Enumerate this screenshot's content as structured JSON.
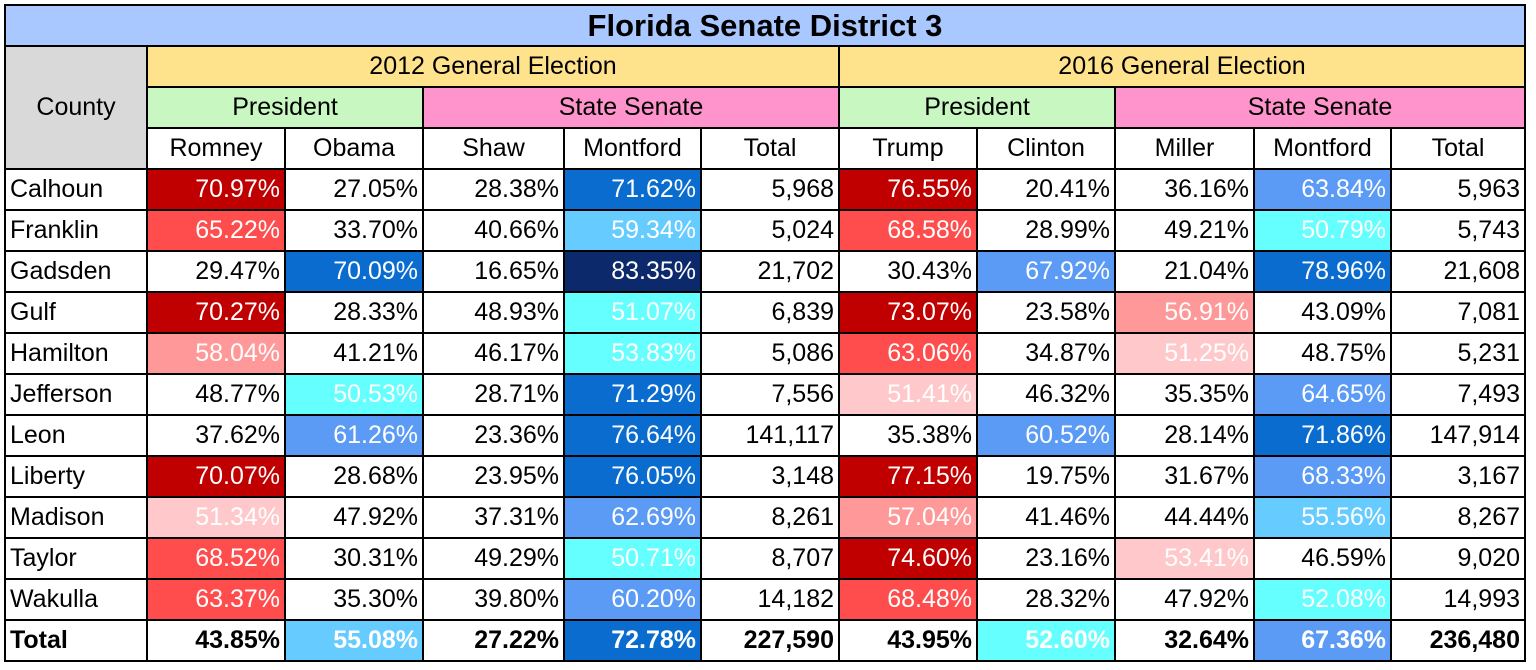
{
  "title": "Florida Senate District 3",
  "county_header": "County",
  "colors": {
    "title_bg": "#a9c8ff",
    "election_bg": "#ffe38c",
    "president_bg": "#c8f7c2",
    "senate_bg": "#ff93cb",
    "county_bg": "#d9d9d9",
    "r_very_strong": "#c00000",
    "r_strong": "#ff4d4d",
    "r_lean": "#ff9999",
    "r_slight": "#ffc9cc",
    "d_slight": "#66ffff",
    "d_lean": "#66ccff",
    "d_medium": "#5b9bf5",
    "d_strong": "#0a6ccf",
    "d_very_strong": "#0c2a6b"
  },
  "elections": [
    {
      "label": "2012 General Election",
      "offices": [
        {
          "label": "President",
          "columns": [
            "Romney",
            "Obama"
          ]
        },
        {
          "label": "State Senate",
          "columns": [
            "Shaw",
            "Montford",
            "Total"
          ]
        }
      ]
    },
    {
      "label": "2016 General Election",
      "offices": [
        {
          "label": "President",
          "columns": [
            "Trump",
            "Clinton"
          ]
        },
        {
          "label": "State Senate",
          "columns": [
            "Miller",
            "Montford",
            "Total"
          ]
        }
      ]
    }
  ],
  "chart_data": {
    "type": "table",
    "title": "Florida Senate District 3",
    "columns": [
      "County",
      "Romney",
      "Obama",
      "Shaw",
      "Montford",
      "Total",
      "Trump",
      "Clinton",
      "Miller",
      "Montford",
      "Total"
    ],
    "rows": [
      {
        "county": "Calhoun",
        "cells": [
          {
            "v": "70.97%",
            "shade": "r_very_strong"
          },
          {
            "v": "27.05%"
          },
          {
            "v": "28.38%"
          },
          {
            "v": "71.62%",
            "shade": "d_strong"
          },
          {
            "v": "5,968"
          },
          {
            "v": "76.55%",
            "shade": "r_very_strong"
          },
          {
            "v": "20.41%"
          },
          {
            "v": "36.16%"
          },
          {
            "v": "63.84%",
            "shade": "d_medium"
          },
          {
            "v": "5,963"
          }
        ]
      },
      {
        "county": "Franklin",
        "cells": [
          {
            "v": "65.22%",
            "shade": "r_strong"
          },
          {
            "v": "33.70%"
          },
          {
            "v": "40.66%"
          },
          {
            "v": "59.34%",
            "shade": "d_lean"
          },
          {
            "v": "5,024"
          },
          {
            "v": "68.58%",
            "shade": "r_strong"
          },
          {
            "v": "28.99%"
          },
          {
            "v": "49.21%"
          },
          {
            "v": "50.79%",
            "shade": "d_slight"
          },
          {
            "v": "5,743"
          }
        ]
      },
      {
        "county": "Gadsden",
        "cells": [
          {
            "v": "29.47%"
          },
          {
            "v": "70.09%",
            "shade": "d_strong"
          },
          {
            "v": "16.65%"
          },
          {
            "v": "83.35%",
            "shade": "d_very_strong"
          },
          {
            "v": "21,702"
          },
          {
            "v": "30.43%"
          },
          {
            "v": "67.92%",
            "shade": "d_medium"
          },
          {
            "v": "21.04%"
          },
          {
            "v": "78.96%",
            "shade": "d_strong"
          },
          {
            "v": "21,608"
          }
        ]
      },
      {
        "county": "Gulf",
        "cells": [
          {
            "v": "70.27%",
            "shade": "r_very_strong"
          },
          {
            "v": "28.33%"
          },
          {
            "v": "48.93%"
          },
          {
            "v": "51.07%",
            "shade": "d_slight"
          },
          {
            "v": "6,839"
          },
          {
            "v": "73.07%",
            "shade": "r_very_strong"
          },
          {
            "v": "23.58%"
          },
          {
            "v": "56.91%",
            "shade": "r_lean"
          },
          {
            "v": "43.09%"
          },
          {
            "v": "7,081"
          }
        ]
      },
      {
        "county": "Hamilton",
        "cells": [
          {
            "v": "58.04%",
            "shade": "r_lean"
          },
          {
            "v": "41.21%"
          },
          {
            "v": "46.17%"
          },
          {
            "v": "53.83%",
            "shade": "d_slight"
          },
          {
            "v": "5,086"
          },
          {
            "v": "63.06%",
            "shade": "r_strong"
          },
          {
            "v": "34.87%"
          },
          {
            "v": "51.25%",
            "shade": "r_slight"
          },
          {
            "v": "48.75%"
          },
          {
            "v": "5,231"
          }
        ]
      },
      {
        "county": "Jefferson",
        "cells": [
          {
            "v": "48.77%"
          },
          {
            "v": "50.53%",
            "shade": "d_slight"
          },
          {
            "v": "28.71%"
          },
          {
            "v": "71.29%",
            "shade": "d_strong"
          },
          {
            "v": "7,556"
          },
          {
            "v": "51.41%",
            "shade": "r_slight"
          },
          {
            "v": "46.32%"
          },
          {
            "v": "35.35%"
          },
          {
            "v": "64.65%",
            "shade": "d_medium"
          },
          {
            "v": "7,493"
          }
        ]
      },
      {
        "county": "Leon",
        "cells": [
          {
            "v": "37.62%"
          },
          {
            "v": "61.26%",
            "shade": "d_medium"
          },
          {
            "v": "23.36%"
          },
          {
            "v": "76.64%",
            "shade": "d_strong"
          },
          {
            "v": "141,117"
          },
          {
            "v": "35.38%"
          },
          {
            "v": "60.52%",
            "shade": "d_medium"
          },
          {
            "v": "28.14%"
          },
          {
            "v": "71.86%",
            "shade": "d_strong"
          },
          {
            "v": "147,914"
          }
        ]
      },
      {
        "county": "Liberty",
        "cells": [
          {
            "v": "70.07%",
            "shade": "r_very_strong"
          },
          {
            "v": "28.68%"
          },
          {
            "v": "23.95%"
          },
          {
            "v": "76.05%",
            "shade": "d_strong"
          },
          {
            "v": "3,148"
          },
          {
            "v": "77.15%",
            "shade": "r_very_strong"
          },
          {
            "v": "19.75%"
          },
          {
            "v": "31.67%"
          },
          {
            "v": "68.33%",
            "shade": "d_medium"
          },
          {
            "v": "3,167"
          }
        ]
      },
      {
        "county": "Madison",
        "cells": [
          {
            "v": "51.34%",
            "shade": "r_slight"
          },
          {
            "v": "47.92%"
          },
          {
            "v": "37.31%"
          },
          {
            "v": "62.69%",
            "shade": "d_medium"
          },
          {
            "v": "8,261"
          },
          {
            "v": "57.04%",
            "shade": "r_lean"
          },
          {
            "v": "41.46%"
          },
          {
            "v": "44.44%"
          },
          {
            "v": "55.56%",
            "shade": "d_lean"
          },
          {
            "v": "8,267"
          }
        ]
      },
      {
        "county": "Taylor",
        "cells": [
          {
            "v": "68.52%",
            "shade": "r_strong"
          },
          {
            "v": "30.31%"
          },
          {
            "v": "49.29%"
          },
          {
            "v": "50.71%",
            "shade": "d_slight"
          },
          {
            "v": "8,707"
          },
          {
            "v": "74.60%",
            "shade": "r_very_strong"
          },
          {
            "v": "23.16%"
          },
          {
            "v": "53.41%",
            "shade": "r_slight"
          },
          {
            "v": "46.59%"
          },
          {
            "v": "9,020"
          }
        ]
      },
      {
        "county": "Wakulla",
        "cells": [
          {
            "v": "63.37%",
            "shade": "r_strong"
          },
          {
            "v": "35.30%"
          },
          {
            "v": "39.80%"
          },
          {
            "v": "60.20%",
            "shade": "d_medium"
          },
          {
            "v": "14,182"
          },
          {
            "v": "68.48%",
            "shade": "r_strong"
          },
          {
            "v": "28.32%"
          },
          {
            "v": "47.92%"
          },
          {
            "v": "52.08%",
            "shade": "d_slight"
          },
          {
            "v": "14,993"
          }
        ]
      }
    ],
    "total": {
      "county": "Total",
      "cells": [
        {
          "v": "43.85%"
        },
        {
          "v": "55.08%",
          "shade": "d_lean"
        },
        {
          "v": "27.22%"
        },
        {
          "v": "72.78%",
          "shade": "d_strong"
        },
        {
          "v": "227,590"
        },
        {
          "v": "43.95%"
        },
        {
          "v": "52.60%",
          "shade": "d_slight"
        },
        {
          "v": "32.64%"
        },
        {
          "v": "67.36%",
          "shade": "d_medium"
        },
        {
          "v": "236,480"
        }
      ]
    }
  }
}
